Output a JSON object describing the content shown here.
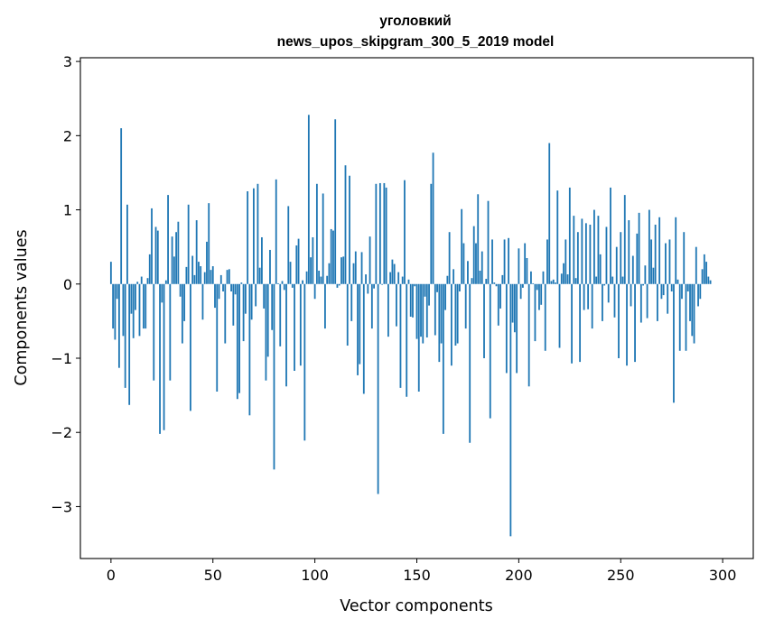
{
  "chart_data": {
    "type": "bar",
    "title_line1": "уголовкий",
    "title_line2": "news_upos_skipgram_300_5_2019 model",
    "xlabel": "Vector components",
    "ylabel": "Components values",
    "xlim": [
      -15,
      315
    ],
    "ylim": [
      -3.7,
      3.05
    ],
    "xticks": [
      0,
      50,
      100,
      150,
      200,
      250,
      300
    ],
    "yticks": [
      -3,
      -2,
      -1,
      0,
      1,
      2,
      3
    ],
    "ytick_labels": [
      "−3",
      "−2",
      "−1",
      "0",
      "1",
      "2",
      "3"
    ],
    "bar_color": "#1f77b4",
    "grid": false,
    "values": [
      0.3,
      -0.6,
      -0.75,
      -0.2,
      -1.13,
      2.1,
      -0.7,
      -1.4,
      1.07,
      -1.63,
      -0.4,
      -0.73,
      -0.35,
      0.03,
      -0.7,
      0.1,
      -0.6,
      -0.6,
      0.08,
      0.4,
      1.02,
      -1.3,
      0.77,
      0.72,
      -2.02,
      -0.25,
      -1.97,
      0.05,
      1.2,
      -1.3,
      0.64,
      0.37,
      0.7,
      0.84,
      -0.17,
      -0.8,
      -0.5,
      0.23,
      1.07,
      -1.71,
      0.38,
      0.12,
      0.86,
      0.3,
      0.24,
      -0.48,
      0.16,
      0.57,
      1.09,
      0.19,
      0.24,
      -0.32,
      -1.45,
      -0.2,
      0.12,
      -0.1,
      -0.8,
      0.19,
      0.2,
      -0.1,
      -0.56,
      -0.14,
      -1.55,
      -1.47,
      0.02,
      -0.77,
      -0.4,
      1.25,
      -1.77,
      -0.48,
      1.29,
      -0.3,
      1.35,
      0.22,
      0.63,
      -0.33,
      -1.3,
      -0.98,
      0.46,
      -0.62,
      -2.5,
      1.41,
      0.01,
      -0.84,
      0.04,
      -0.08,
      -1.38,
      1.05,
      0.3,
      -0.05,
      -1.17,
      0.52,
      0.61,
      -1.1,
      0.05,
      -2.11,
      0.17,
      2.28,
      0.36,
      0.63,
      -0.2,
      1.35,
      0.18,
      0.1,
      1.22,
      -0.6,
      0.11,
      0.28,
      0.74,
      0.72,
      2.22,
      -0.05,
      -0.02,
      0.36,
      0.37,
      1.6,
      -0.83,
      1.46,
      -0.5,
      0.28,
      0.44,
      -1.23,
      -1.08,
      0.43,
      -1.48,
      0.13,
      -0.13,
      0.64,
      -0.6,
      -0.06,
      1.35,
      -2.83,
      1.36,
      -0.01,
      1.36,
      1.3,
      -0.71,
      0.16,
      0.33,
      0.27,
      -0.57,
      0.16,
      -1.4,
      0.1,
      1.4,
      -1.52,
      0.06,
      -0.44,
      -0.45,
      -0.03,
      -0.74,
      -1.45,
      -0.71,
      -0.8,
      -0.17,
      -0.72,
      -0.29,
      1.35,
      1.77,
      -0.69,
      -0.11,
      -1.05,
      -0.8,
      -2.02,
      -0.35,
      0.11,
      0.7,
      -1.1,
      0.2,
      -0.83,
      -0.8,
      -0.1,
      1.01,
      0.55,
      -0.6,
      0.31,
      -2.14,
      0.08,
      0.78,
      0.55,
      1.21,
      0.18,
      0.44,
      -1.0,
      0.07,
      1.12,
      -1.81,
      0.6,
      0.02,
      -0.03,
      -0.56,
      -0.33,
      0.12,
      0.6,
      -1.2,
      0.62,
      -3.4,
      -0.52,
      -0.65,
      -1.2,
      0.48,
      -0.2,
      -0.05,
      0.55,
      0.35,
      -1.38,
      0.17,
      0.01,
      -0.77,
      -0.08,
      -0.35,
      -0.28,
      0.17,
      -0.9,
      0.6,
      1.9,
      0.04,
      0.06,
      0.02,
      1.26,
      -0.86,
      0.14,
      0.28,
      0.6,
      0.13,
      1.3,
      -1.07,
      0.92,
      0.08,
      0.7,
      -1.05,
      0.88,
      -0.35,
      0.82,
      -0.34,
      0.8,
      -0.6,
      1.0,
      0.1,
      0.92,
      0.4,
      -0.5,
      -0.02,
      0.77,
      -0.25,
      1.3,
      0.1,
      -0.45,
      0.5,
      -1.0,
      0.7,
      0.1,
      1.2,
      -1.1,
      0.86,
      -0.3,
      0.38,
      -1.05,
      0.68,
      0.96,
      -0.52,
      -0.02,
      0.25,
      -0.46,
      1.0,
      0.6,
      0.22,
      0.8,
      -0.5,
      0.9,
      -0.2,
      -0.15,
      0.55,
      -0.4,
      0.6,
      -0.1,
      -1.6,
      0.9,
      0.06,
      -0.9,
      -0.2,
      0.7,
      -0.9,
      -0.1,
      -0.5,
      -0.7,
      -0.8,
      0.5,
      -0.3,
      -0.2,
      0.2,
      0.4,
      0.3,
      0.1,
      0.05
    ]
  }
}
